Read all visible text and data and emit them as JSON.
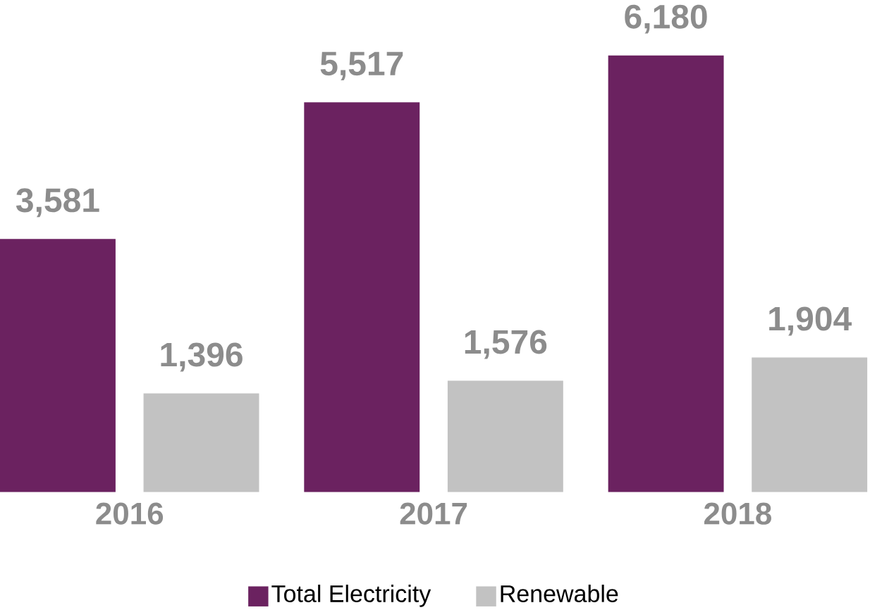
{
  "chart_data": {
    "type": "bar",
    "categories": [
      "2016",
      "2017",
      "2018"
    ],
    "series": [
      {
        "name": "Total Electricity",
        "color": "#6b2260",
        "values": [
          3581,
          5517,
          6180
        ],
        "value_labels": [
          "3,581",
          "5,517",
          "6,180"
        ]
      },
      {
        "name": "Renewable",
        "color": "#c2c2c2",
        "values": [
          1396,
          1576,
          1904
        ],
        "value_labels": [
          "1,396",
          "1,576",
          "1,904"
        ]
      }
    ],
    "legend": "bottom"
  }
}
